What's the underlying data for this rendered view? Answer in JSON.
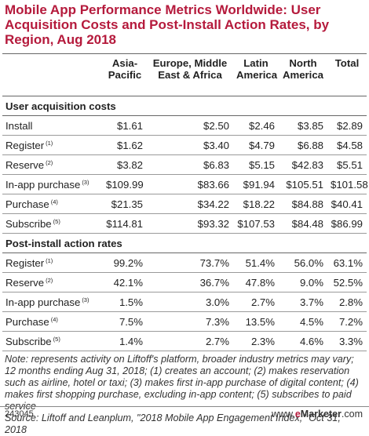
{
  "title": "Mobile App Performance Metrics Worldwide: User Acquisition Costs and Post-Install Action Rates, by Region, Aug 2018",
  "columns": [
    "Asia-Pacific",
    "Europe, Middle East & Africa",
    "Latin America",
    "North America",
    "Total"
  ],
  "sections": [
    {
      "label": "User acquisition costs",
      "rows": [
        {
          "label": "Install",
          "sup": "",
          "values": [
            "$1.61",
            "$2.50",
            "$2.46",
            "$3.85",
            "$2.89"
          ]
        },
        {
          "label": "Register",
          "sup": "(1)",
          "values": [
            "$1.62",
            "$3.40",
            "$4.79",
            "$6.88",
            "$4.58"
          ]
        },
        {
          "label": "Reserve",
          "sup": "(2)",
          "values": [
            "$3.82",
            "$6.83",
            "$5.15",
            "$42.83",
            "$5.51"
          ]
        },
        {
          "label": "In-app purchase",
          "sup": "(3)",
          "values": [
            "$109.99",
            "$83.66",
            "$91.94",
            "$105.51",
            "$101.58"
          ]
        },
        {
          "label": "Purchase",
          "sup": "(4)",
          "values": [
            "$21.35",
            "$34.22",
            "$18.22",
            "$84.88",
            "$40.41"
          ]
        },
        {
          "label": "Subscribe",
          "sup": "(5)",
          "values": [
            "$114.81",
            "$93.32",
            "$107.53",
            "$84.48",
            "$86.99"
          ]
        }
      ]
    },
    {
      "label": "Post-install action rates",
      "rows": [
        {
          "label": "Register",
          "sup": "(1)",
          "values": [
            "99.2%",
            "73.7%",
            "51.4%",
            "56.0%",
            "63.1%"
          ]
        },
        {
          "label": "Reserve",
          "sup": "(2)",
          "values": [
            "42.1%",
            "36.7%",
            "47.8%",
            "9.0%",
            "52.5%"
          ]
        },
        {
          "label": "In-app purchase",
          "sup": "(3)",
          "values": [
            "1.5%",
            "3.0%",
            "2.7%",
            "3.7%",
            "2.8%"
          ]
        },
        {
          "label": "Purchase",
          "sup": "(4)",
          "values": [
            "7.5%",
            "7.3%",
            "13.5%",
            "4.5%",
            "7.2%"
          ]
        },
        {
          "label": "Subscribe",
          "sup": "(5)",
          "values": [
            "1.4%",
            "2.7%",
            "2.3%",
            "4.6%",
            "3.3%"
          ]
        }
      ]
    }
  ],
  "note": "Note: represents activity on Liftoff's platform, broader industry metrics may vary; 12 months ending Aug 31, 2018; (1) creates an account; (2) makes reservation such as airline, hotel or taxi; (3) makes first in-app purchase of digital content; (4) makes first shopping purchase, excluding in-app content; (5) subscribes to paid service",
  "source": "Source: Liftoff and Leanplum, \"2018 Mobile App Engagement Index,\" Oct 31, 2018",
  "footer": {
    "id": "243045",
    "brand_prefix": "www.",
    "brand_e": "e",
    "brand_name": "Marketer",
    "brand_suffix": ".com"
  }
}
